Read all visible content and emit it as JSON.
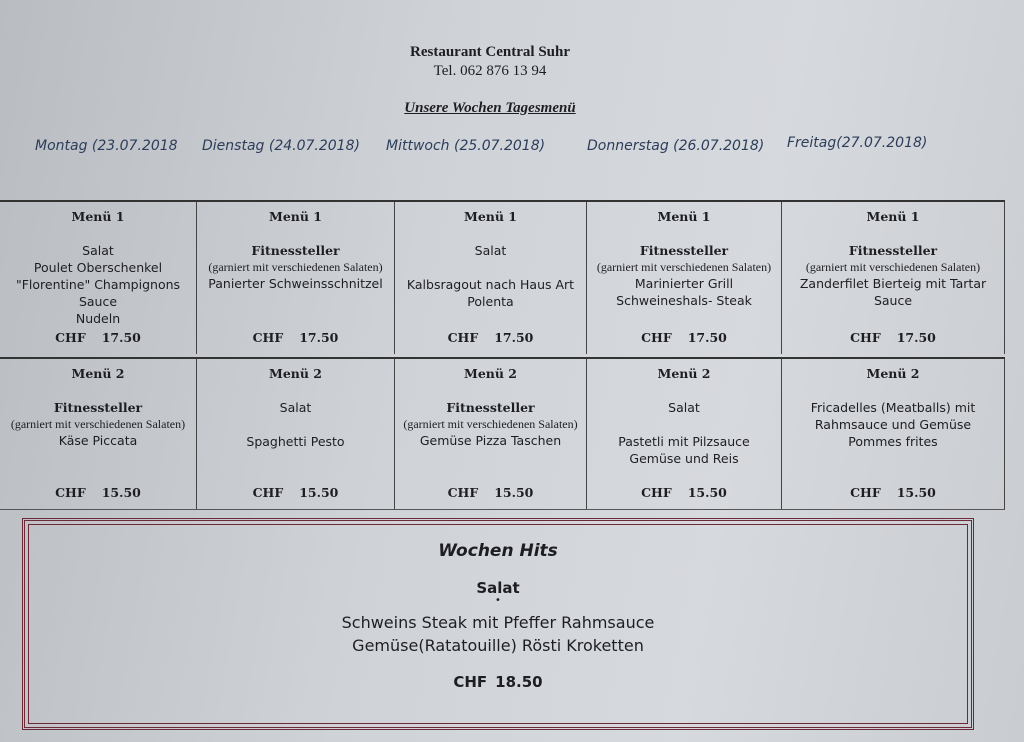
{
  "header": {
    "restaurant": "Restaurant Central Suhr",
    "phone": "Tel. 062 876 13 94",
    "week_title": "Unsere Wochen Tagesmenü"
  },
  "days": [
    "Montag (23.07.2018",
    "Dienstag (24.07.2018)",
    "Mittwoch (25.07.2018)",
    "Donnerstag (26.07.2018)",
    "Freitag(27.07.2018)"
  ],
  "menu1": [
    {
      "title": "Menü 1",
      "starter": "Salat",
      "starter_bold": false,
      "note": "",
      "dishes": [
        "Poulet Oberschenkel",
        "\"Florentine\" Champignons",
        "Sauce",
        "Nudeln"
      ],
      "currency": "CHF",
      "price": "17.50"
    },
    {
      "title": "Menü 1",
      "starter": "Fitnessteller",
      "starter_bold": true,
      "note": "(garniert mit verschiedenen Salaten)",
      "dishes": [
        "Panierter Schweinsschnitzel"
      ],
      "currency": "CHF",
      "price": "17.50"
    },
    {
      "title": "Menü 1",
      "starter": "Salat",
      "starter_bold": false,
      "note": "",
      "dishes": [
        "",
        "Kalbsragout nach Haus Art",
        "Polenta"
      ],
      "currency": "CHF",
      "price": "17.50"
    },
    {
      "title": "Menü 1",
      "starter": "Fitnessteller",
      "starter_bold": true,
      "note": "(garniert mit verschiedenen Salaten)",
      "dishes": [
        "Marinierter Grill",
        "Schweineshals- Steak"
      ],
      "currency": "CHF",
      "price": "17.50"
    },
    {
      "title": "Menü 1",
      "starter": "Fitnessteller",
      "starter_bold": true,
      "note": "(garniert mit verschiedenen Salaten)",
      "dishes": [
        "Zanderfilet Bierteig mit Tartar",
        "Sauce"
      ],
      "currency": "CHF",
      "price": "17.50"
    }
  ],
  "menu2": [
    {
      "title": "Menü 2",
      "starter": "Fitnessteller",
      "starter_bold": true,
      "note": "(garniert mit verschiedenen Salaten)",
      "dishes": [
        "Käse Piccata"
      ],
      "currency": "CHF",
      "price": "15.50"
    },
    {
      "title": "Menü 2",
      "starter": "Salat",
      "starter_bold": false,
      "note": "",
      "dishes": [
        "",
        "Spaghetti Pesto"
      ],
      "currency": "CHF",
      "price": "15.50"
    },
    {
      "title": "Menü 2",
      "starter": "Fitnessteller",
      "starter_bold": true,
      "note": "(garniert mit verschiedenen Salaten)",
      "dishes": [
        "Gemüse Pizza Taschen"
      ],
      "currency": "CHF",
      "price": "15.50"
    },
    {
      "title": "Menü 2",
      "starter": "Salat",
      "starter_bold": false,
      "note": "",
      "dishes": [
        "",
        "Pastetli mit Pilzsauce",
        "Gemüse und Reis"
      ],
      "currency": "CHF",
      "price": "15.50"
    },
    {
      "title": "Menü 2",
      "starter": "",
      "starter_bold": false,
      "note": "",
      "dishes": [
        "Fricadelles (Meatballs) mit",
        "Rahmsauce und Gemüse",
        "Pommes frites"
      ],
      "currency": "CHF",
      "price": "15.50"
    }
  ],
  "wochen_hits": {
    "title": "Wochen Hits",
    "starter": "Salat",
    "dishes": [
      "Schweins Steak  mit Pfeffer Rahmsauce",
      "Gemüse(Ratatouille) Rösti Kroketten"
    ],
    "currency": "CHF",
    "price": "18.50"
  }
}
